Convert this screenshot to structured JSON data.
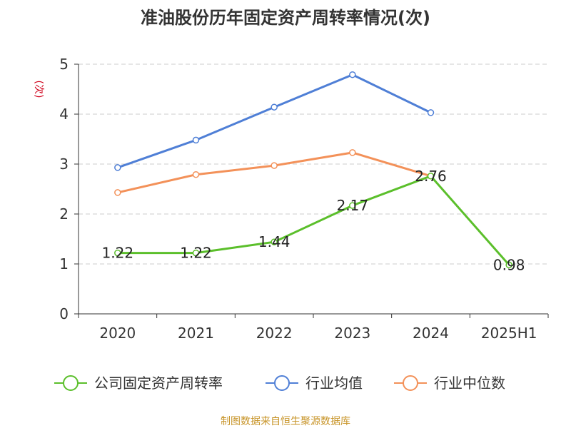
{
  "title": "准油股份历年固定资产周转率情况(次)",
  "source": "制图数据来自恒生聚源数据库",
  "chart_data": {
    "type": "line",
    "title": "准油股份历年固定资产周转率情况(次)",
    "ylabel": "(次)",
    "xlabel": "",
    "categories": [
      "2020",
      "2021",
      "2022",
      "2023",
      "2024",
      "2025H1"
    ],
    "ylim": [
      0,
      5
    ],
    "yticks": [
      0,
      1,
      2,
      3,
      4,
      5
    ],
    "grid": true,
    "legend_position": "bottom",
    "series": [
      {
        "name": "公司固定资产周转率",
        "color": "#5bbf2b",
        "values": [
          1.22,
          1.22,
          1.44,
          2.17,
          2.76,
          0.98
        ],
        "labels": [
          "1.22",
          "1.22",
          "1.44",
          "2.17",
          "2.76",
          "0.98"
        ]
      },
      {
        "name": "行业均值",
        "color": "#4f7fd6",
        "values": [
          2.93,
          3.48,
          4.14,
          4.79,
          4.03,
          null
        ]
      },
      {
        "name": "行业中位数",
        "color": "#f39159",
        "values": [
          2.43,
          2.79,
          2.97,
          3.23,
          2.76,
          null
        ]
      }
    ]
  }
}
